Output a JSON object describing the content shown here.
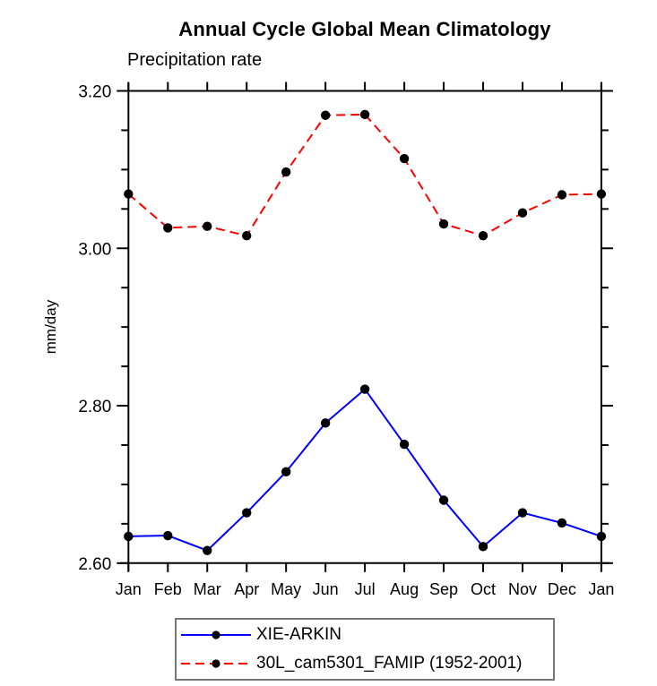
{
  "page": {
    "background": "#ffffff",
    "frame_color": "#000000"
  },
  "chart_data": {
    "type": "line",
    "title": "Annual Cycle Global Mean Climatology",
    "subtitle": "Precipitation rate",
    "ylabel": "mm/day",
    "xlabel": "",
    "categories": [
      "Jan",
      "Feb",
      "Mar",
      "Apr",
      "May",
      "Jun",
      "Jul",
      "Aug",
      "Sep",
      "Oct",
      "Nov",
      "Dec",
      "Jan"
    ],
    "ylim": [
      2.6,
      3.2
    ],
    "y_major_ticks": [
      3.2,
      3.0,
      2.8,
      2.6
    ],
    "y_minor_step": 0.05,
    "grid": false,
    "legend_position": "bottom",
    "marker": "filled-circle",
    "marker_color": "#000000",
    "series": [
      {
        "name": "XIE-ARKIN",
        "color": "#0000ff",
        "line_style": "solid",
        "values": [
          2.634,
          2.635,
          2.616,
          2.664,
          2.716,
          2.778,
          2.821,
          2.751,
          2.68,
          2.621,
          2.664,
          2.651,
          2.634
        ]
      },
      {
        "name": "30L_cam5301_FAMIP (1952-2001)",
        "color": "#ff0000",
        "line_style": "dashed",
        "values": [
          3.069,
          3.026,
          3.028,
          3.016,
          3.097,
          3.169,
          3.17,
          3.114,
          3.031,
          3.016,
          3.045,
          3.068,
          3.069
        ]
      }
    ]
  }
}
